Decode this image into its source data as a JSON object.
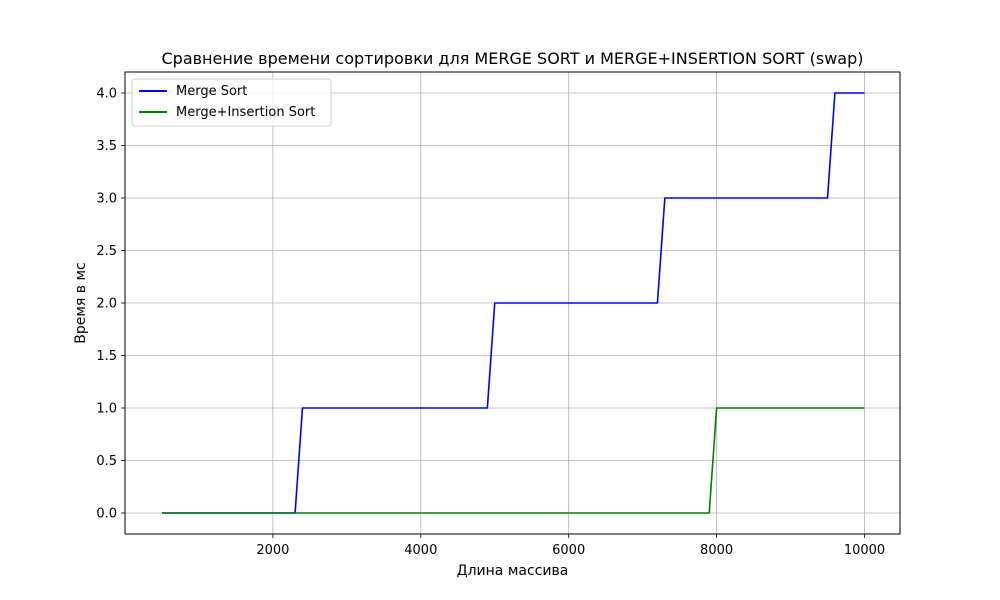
{
  "chart_data": {
    "type": "line",
    "title": "Сравнение времени сортировки для MERGE SORT и MERGE+INSERTION SORT (swap)",
    "xlabel": "Длина массива",
    "ylabel": "Время в мс",
    "xlim": [
      0,
      10480
    ],
    "ylim": [
      -0.2,
      4.2
    ],
    "xticks": [
      2000,
      4000,
      6000,
      8000,
      10000
    ],
    "yticks": [
      0.0,
      0.5,
      1.0,
      1.5,
      2.0,
      2.5,
      3.0,
      3.5,
      4.0
    ],
    "xtick_labels": [
      "2000",
      "4000",
      "6000",
      "8000",
      "10000"
    ],
    "ytick_labels": [
      "0.0",
      "0.5",
      "1.0",
      "1.5",
      "2.0",
      "2.5",
      "3.0",
      "3.5",
      "4.0"
    ],
    "grid": true,
    "legend_position": "top-left",
    "series": [
      {
        "name": "Merge Sort",
        "color": "#0000ff",
        "x": [
          500,
          2300,
          2400,
          4900,
          5000,
          7200,
          7300,
          9500,
          9600,
          10000
        ],
        "y": [
          0,
          0,
          1,
          1,
          2,
          2,
          3,
          3,
          4,
          4
        ]
      },
      {
        "name": "Merge+Insertion Sort",
        "color": "#008000",
        "x": [
          500,
          7900,
          8000,
          10000
        ],
        "y": [
          0,
          0,
          1,
          1
        ]
      }
    ]
  }
}
